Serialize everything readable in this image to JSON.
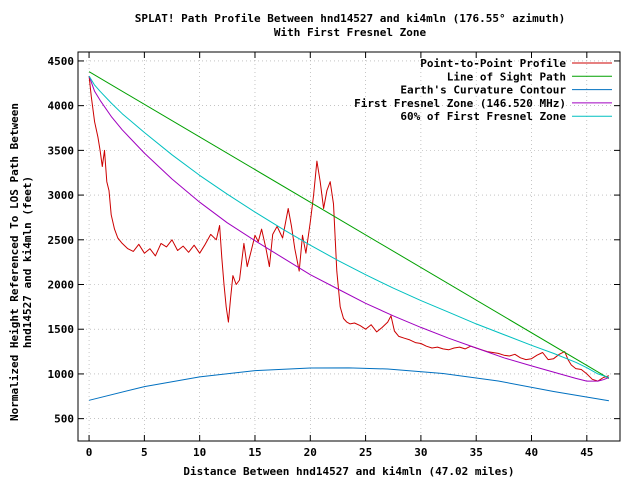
{
  "chart_data": {
    "type": "line",
    "title": "SPLAT! Path Profile Between hnd14527 and ki4mln (176.55° azimuth)",
    "subtitle": "With First Fresnel Zone",
    "xlabel": "Distance Between hnd14527 and ki4mln (47.02 miles)",
    "ylabel_line1": "Normalized Height Referenced To LOS Path Between",
    "ylabel_line2": "hnd14527 and ki4mln (feet)",
    "xlim": [
      -1,
      48
    ],
    "ylim": [
      250,
      4600
    ],
    "x_ticks": [
      0,
      5,
      10,
      15,
      20,
      25,
      30,
      35,
      40,
      45
    ],
    "x_tick_labels": [
      "0",
      "5",
      "10",
      "15",
      "20",
      "25",
      "30",
      "35",
      "40",
      "45"
    ],
    "y_ticks": [
      500,
      1000,
      1500,
      2000,
      2500,
      3000,
      3500,
      4000,
      4500
    ],
    "y_tick_labels": [
      "500",
      "1000",
      "1500",
      "2000",
      "2500",
      "3000",
      "3500",
      "4000",
      "4500"
    ],
    "grid": true,
    "legend_placement": "top-right",
    "series": [
      {
        "name": "Point-to-Point Profile",
        "color": "#cc0000",
        "x": [
          0,
          0.2,
          0.5,
          0.8,
          1.0,
          1.2,
          1.4,
          1.6,
          1.8,
          2.0,
          2.3,
          2.6,
          3.0,
          3.5,
          4.0,
          4.5,
          5.0,
          5.5,
          6.0,
          6.5,
          7.0,
          7.5,
          8.0,
          8.5,
          9.0,
          9.5,
          10.0,
          10.5,
          11.0,
          11.5,
          11.8,
          12.0,
          12.2,
          12.4,
          12.6,
          12.8,
          13.0,
          13.3,
          13.6,
          14.0,
          14.3,
          14.6,
          15.0,
          15.3,
          15.6,
          16.0,
          16.3,
          16.6,
          17.0,
          17.5,
          18.0,
          18.3,
          18.6,
          19.0,
          19.3,
          19.6,
          20.0,
          20.3,
          20.6,
          20.9,
          21.2,
          21.5,
          21.8,
          22.1,
          22.4,
          22.7,
          23.0,
          23.3,
          23.6,
          24.0,
          24.5,
          25.0,
          25.5,
          26.0,
          26.5,
          27.0,
          27.3,
          27.6,
          28.0,
          28.5,
          29.0,
          29.5,
          30.0,
          30.5,
          31.0,
          31.5,
          32.0,
          32.5,
          33.0,
          33.5,
          34.0,
          34.5,
          35.0,
          35.5,
          36.0,
          36.5,
          37.0,
          37.5,
          38.0,
          38.5,
          39.0,
          39.5,
          40.0,
          40.5,
          41.0,
          41.5,
          42.0,
          42.5,
          43.0,
          43.3,
          43.6,
          44.0,
          44.5,
          45.0,
          45.5,
          46.0,
          46.5,
          47.0
        ],
        "y": [
          4330,
          4100,
          3820,
          3650,
          3500,
          3320,
          3500,
          3150,
          3050,
          2780,
          2620,
          2520,
          2460,
          2400,
          2370,
          2450,
          2350,
          2400,
          2320,
          2460,
          2420,
          2500,
          2380,
          2430,
          2360,
          2440,
          2350,
          2450,
          2560,
          2500,
          2660,
          2300,
          2000,
          1750,
          1580,
          1850,
          2100,
          2000,
          2050,
          2460,
          2200,
          2350,
          2550,
          2480,
          2620,
          2400,
          2200,
          2560,
          2650,
          2520,
          2850,
          2650,
          2400,
          2150,
          2550,
          2350,
          2700,
          3000,
          3380,
          3150,
          2850,
          3050,
          3150,
          2900,
          2150,
          1750,
          1620,
          1580,
          1560,
          1570,
          1540,
          1500,
          1550,
          1470,
          1520,
          1580,
          1650,
          1480,
          1420,
          1400,
          1380,
          1350,
          1340,
          1310,
          1290,
          1300,
          1280,
          1270,
          1290,
          1300,
          1280,
          1310,
          1290,
          1270,
          1250,
          1240,
          1230,
          1210,
          1200,
          1220,
          1180,
          1160,
          1170,
          1210,
          1240,
          1160,
          1170,
          1220,
          1250,
          1160,
          1100,
          1060,
          1050,
          1000,
          940,
          920,
          960,
          980
        ]
      },
      {
        "name": "Line of Sight Path",
        "color": "#00a000",
        "x": [
          0,
          47
        ],
        "y": [
          4380,
          950
        ]
      },
      {
        "name": "Earth's Curvature Contour",
        "color": "#0070c0",
        "x": [
          0,
          5,
          10,
          15,
          20,
          23.5,
          27,
          32,
          37,
          42,
          47
        ],
        "y": [
          705,
          858,
          967,
          1037,
          1066,
          1068,
          1055,
          1005,
          921,
          803,
          700
        ]
      },
      {
        "name": "First Fresnel Zone (146.520 MHz)",
        "color": "#a000c0",
        "x": [
          0,
          0.5,
          1,
          2,
          3,
          5,
          7.5,
          10,
          12.5,
          15,
          17.5,
          20,
          22.5,
          25,
          27.5,
          30,
          32.5,
          35,
          37.5,
          40,
          42,
          44,
          45,
          46,
          46.5,
          47
        ],
        "y": [
          4330,
          4160,
          4060,
          3880,
          3730,
          3470,
          3180,
          2920,
          2690,
          2490,
          2300,
          2110,
          1950,
          1790,
          1650,
          1520,
          1400,
          1290,
          1180,
          1090,
          1020,
          950,
          920,
          920,
          935,
          960
        ]
      },
      {
        "name": "60% of First Fresnel Zone",
        "color": "#00c0c0",
        "x": [
          0,
          0.5,
          1,
          2,
          3,
          5,
          7.5,
          10,
          12.5,
          15,
          17.5,
          20,
          22.5,
          25,
          27.5,
          30,
          32.5,
          35,
          37.5,
          40,
          42,
          44,
          45,
          46,
          46.5,
          47
        ],
        "y": [
          4330,
          4230,
          4160,
          4030,
          3910,
          3700,
          3450,
          3220,
          3010,
          2810,
          2620,
          2440,
          2270,
          2110,
          1960,
          1820,
          1690,
          1560,
          1440,
          1320,
          1230,
          1130,
          1070,
          1000,
          980,
          960
        ]
      }
    ]
  }
}
